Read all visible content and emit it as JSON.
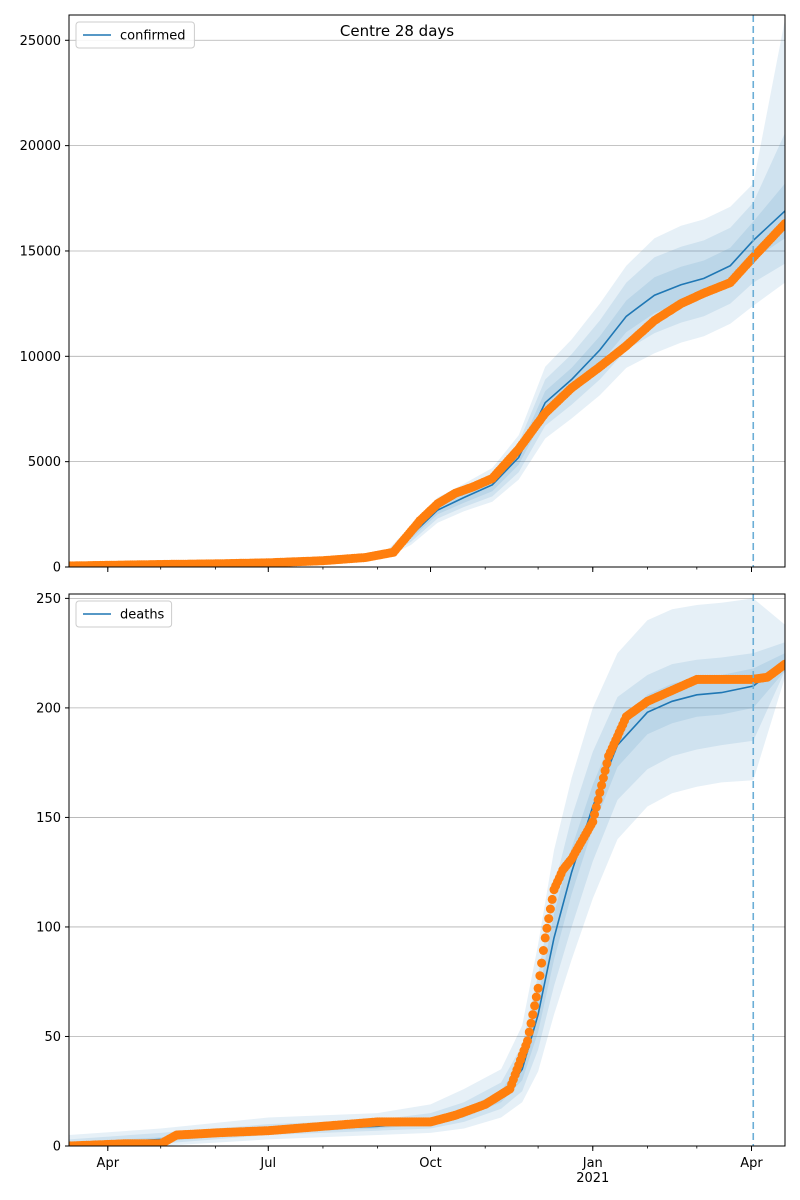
{
  "figure": {
    "title": "Centre 28 days"
  },
  "colors": {
    "model_line": "#1f77b4",
    "band": "#1f77b4",
    "observed": "#ff7f0e",
    "vline": "#6baed6",
    "grid": "#b0b0b0"
  },
  "x_axis": {
    "range": [
      "2020-03-10",
      "2021-04-20"
    ],
    "major_ticks": [
      {
        "date": "2020-04-01",
        "label": "Apr"
      },
      {
        "date": "2020-07-01",
        "label": "Jul"
      },
      {
        "date": "2020-10-01",
        "label": "Oct"
      },
      {
        "date": "2021-01-01",
        "label": "Jan"
      },
      {
        "date": "2021-04-01",
        "label": "Apr"
      }
    ],
    "year_label": {
      "date": "2021-01-01",
      "label": "2021"
    }
  },
  "chart_data": [
    {
      "type": "line",
      "legend": {
        "label": "confirmed",
        "position": "top-left"
      },
      "grid": "horizontal",
      "ylim": [
        0,
        26200
      ],
      "yticks": [
        0,
        5000,
        10000,
        15000,
        20000,
        25000
      ],
      "forecast_start": "2021-04-02",
      "model": {
        "x": [
          "2020-03-10",
          "2020-06-01",
          "2020-08-20",
          "2020-09-05",
          "2020-09-20",
          "2020-10-05",
          "2020-10-20",
          "2020-11-05",
          "2020-11-20",
          "2020-12-05",
          "2020-12-20",
          "2021-01-05",
          "2021-01-20",
          "2021-02-05",
          "2021-02-20",
          "2021-03-05",
          "2021-03-20",
          "2021-04-02",
          "2021-04-20"
        ],
        "y": [
          50,
          160,
          380,
          560,
          1500,
          2700,
          3300,
          3900,
          5200,
          7800,
          8900,
          10300,
          11900,
          12900,
          13400,
          13700,
          14300,
          15500,
          16900
        ],
        "bands": [
          {
            "lo": [
              45,
              150,
              350,
              520,
              1350,
              2500,
              3050,
              3600,
              4850,
              7250,
              8350,
              9650,
              11150,
              12050,
              12550,
              12850,
              13450,
              14600,
              15600
            ],
            "hi": [
              55,
              170,
              410,
              600,
              1650,
              2900,
              3550,
              4200,
              5550,
              8350,
              9450,
              10950,
              12650,
              13750,
              14250,
              14550,
              15150,
              16400,
              18200
            ]
          },
          {
            "lo": [
              40,
              140,
              320,
              480,
              1200,
              2300,
              2850,
              3350,
              4500,
              6700,
              7700,
              8900,
              10300,
              11100,
              11600,
              11900,
              12500,
              13500,
              14400
            ],
            "hi": [
              60,
              180,
              440,
              640,
              1800,
              3100,
              3750,
              4450,
              5900,
              8900,
              10100,
              11700,
              13500,
              14700,
              15200,
              15500,
              16100,
              17300,
              20600
            ]
          },
          {
            "lo": [
              35,
              130,
              290,
              440,
              1050,
              2100,
              2650,
              3100,
              4150,
              6100,
              7050,
              8150,
              9450,
              10150,
              10650,
              10950,
              11550,
              12400,
              13500
            ],
            "hi": [
              65,
              190,
              470,
              680,
              1950,
              3300,
              3950,
              4700,
              6250,
              9500,
              10800,
              12500,
              14300,
              15600,
              16200,
              16500,
              17100,
              18200,
              26000
            ]
          }
        ]
      },
      "observed": {
        "x": [
          "2020-03-10",
          "2020-04-01",
          "2020-05-01",
          "2020-06-01",
          "2020-07-01",
          "2020-08-01",
          "2020-08-25",
          "2020-09-10",
          "2020-09-25",
          "2020-10-05",
          "2020-10-15",
          "2020-10-25",
          "2020-11-05",
          "2020-11-20",
          "2020-12-05",
          "2020-12-20",
          "2021-01-05",
          "2021-01-20",
          "2021-02-05",
          "2021-02-20",
          "2021-03-05",
          "2021-03-20",
          "2021-04-02",
          "2021-04-20"
        ],
        "y": [
          50,
          80,
          120,
          150,
          200,
          300,
          450,
          700,
          2200,
          3000,
          3500,
          3800,
          4200,
          5600,
          7300,
          8500,
          9500,
          10500,
          11700,
          12500,
          13000,
          13500,
          14700,
          16300
        ]
      }
    },
    {
      "type": "line",
      "legend": {
        "label": "deaths",
        "position": "top-left"
      },
      "grid": "horizontal",
      "ylim": [
        0,
        252
      ],
      "yticks": [
        0,
        50,
        100,
        150,
        200,
        250
      ],
      "forecast_start": "2021-04-02",
      "model": {
        "x": [
          "2020-03-10",
          "2020-05-01",
          "2020-07-01",
          "2020-09-01",
          "2020-10-01",
          "2020-10-20",
          "2020-11-10",
          "2020-11-22",
          "2020-12-01",
          "2020-12-10",
          "2020-12-20",
          "2021-01-01",
          "2021-01-15",
          "2021-02-01",
          "2021-02-15",
          "2021-03-01",
          "2021-03-15",
          "2021-04-02",
          "2021-04-20"
        ],
        "y": [
          0.5,
          3,
          7,
          9,
          11,
          15,
          22,
          35,
          60,
          95,
          125,
          155,
          183,
          198,
          203,
          206,
          207,
          210,
          221
        ],
        "bands": [
          {
            "lo": [
              0,
              2,
              6,
              8,
              10,
              13,
              20,
              30,
              52,
              85,
              115,
              145,
              173,
              188,
              193,
              196,
              197,
              200,
              217
            ],
            "hi": [
              1.5,
              4,
              8,
              10.5,
              12.5,
              17,
              25,
              40,
              68,
              106,
              136,
              165,
              192,
              206,
              211,
              214,
              215,
              218,
              225
            ]
          },
          {
            "lo": [
              0,
              1,
              5,
              7,
              8,
              11,
              17,
              25,
              44,
              73,
              100,
              130,
              158,
              172,
              178,
              181,
              183,
              185,
              217
            ],
            "hi": [
              3,
              6,
              10,
              12,
              15,
              20,
              29,
              46,
              78,
              118,
              150,
              180,
              205,
              215,
              220,
              222,
              223,
              225,
              230
            ]
          },
          {
            "lo": [
              0,
              0,
              3,
              5,
              6,
              8,
              13,
              20,
              34,
              60,
              85,
              113,
              140,
              155,
              161,
              164,
              166,
              167,
              214
            ],
            "hi": [
              5,
              8,
              13,
              15,
              19,
              26,
              35,
              55,
              92,
              135,
              168,
              200,
              225,
              240,
              245,
              247,
              248,
              250,
              238
            ]
          }
        ]
      },
      "observed": {
        "x": [
          "2020-03-10",
          "2020-04-10",
          "2020-05-01",
          "2020-05-10",
          "2020-06-01",
          "2020-07-01",
          "2020-08-01",
          "2020-09-01",
          "2020-10-01",
          "2020-10-15",
          "2020-11-01",
          "2020-11-15",
          "2020-11-25",
          "2020-12-01",
          "2020-12-05",
          "2020-12-10",
          "2020-12-15",
          "2020-12-20",
          "2021-01-01",
          "2021-01-10",
          "2021-01-20",
          "2021-02-01",
          "2021-02-15",
          "2021-03-01",
          "2021-04-01",
          "2021-04-10",
          "2021-04-20"
        ],
        "y": [
          0,
          1,
          1,
          5,
          6,
          7,
          9,
          11,
          11,
          14,
          19,
          26,
          48,
          72,
          95,
          117,
          126,
          131,
          148,
          178,
          196,
          203,
          208,
          213,
          213,
          214,
          220
        ]
      }
    }
  ]
}
